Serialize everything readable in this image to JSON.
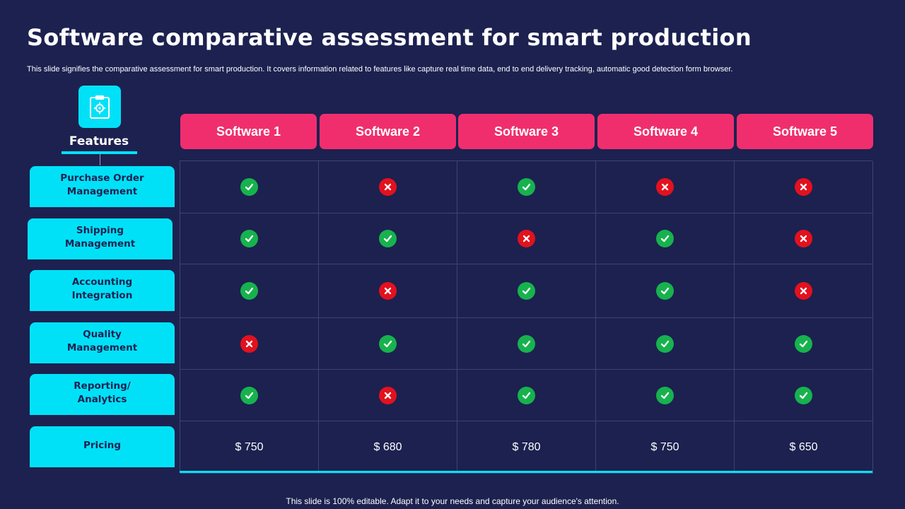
{
  "title": "Software comparative assessment for smart production",
  "subtitle": "This slide signifies the comparative assessment for smart production. It covers information related to features like capture real time data, end to end delivery tracking, automatic good detection form browser.",
  "features_heading": "Features",
  "features_icon": "clipboard-gear-icon",
  "software": [
    "Software 1",
    "Software 2",
    "Software 3",
    "Software 4",
    "Software 5"
  ],
  "rows": [
    {
      "feature": "Purchase Order\nManagement",
      "values": [
        "yes",
        "no",
        "yes",
        "no",
        "no"
      ]
    },
    {
      "feature": "Shipping\nManagement",
      "values": [
        "yes",
        "yes",
        "no",
        "yes",
        "no"
      ]
    },
    {
      "feature": "Accounting\nIntegration",
      "values": [
        "yes",
        "no",
        "yes",
        "yes",
        "no"
      ]
    },
    {
      "feature": "Quality\nManagement",
      "values": [
        "no",
        "yes",
        "yes",
        "yes",
        "yes"
      ]
    },
    {
      "feature": "Reporting/\nAnalytics",
      "values": [
        "yes",
        "no",
        "yes",
        "yes",
        "yes"
      ]
    },
    {
      "feature": "Pricing",
      "values": [
        "$ 750",
        "$ 680",
        "$ 780",
        "$ 750",
        "$ 650"
      ]
    }
  ],
  "footer": "This slide is 100% editable. Adapt it to your needs and capture your audience's attention.",
  "colors": {
    "background": "#1c2150",
    "accent_cyan": "#00e1f8",
    "header_pink": "#f02e6e",
    "check_green": "#17b24e",
    "cross_red": "#e3111e"
  }
}
